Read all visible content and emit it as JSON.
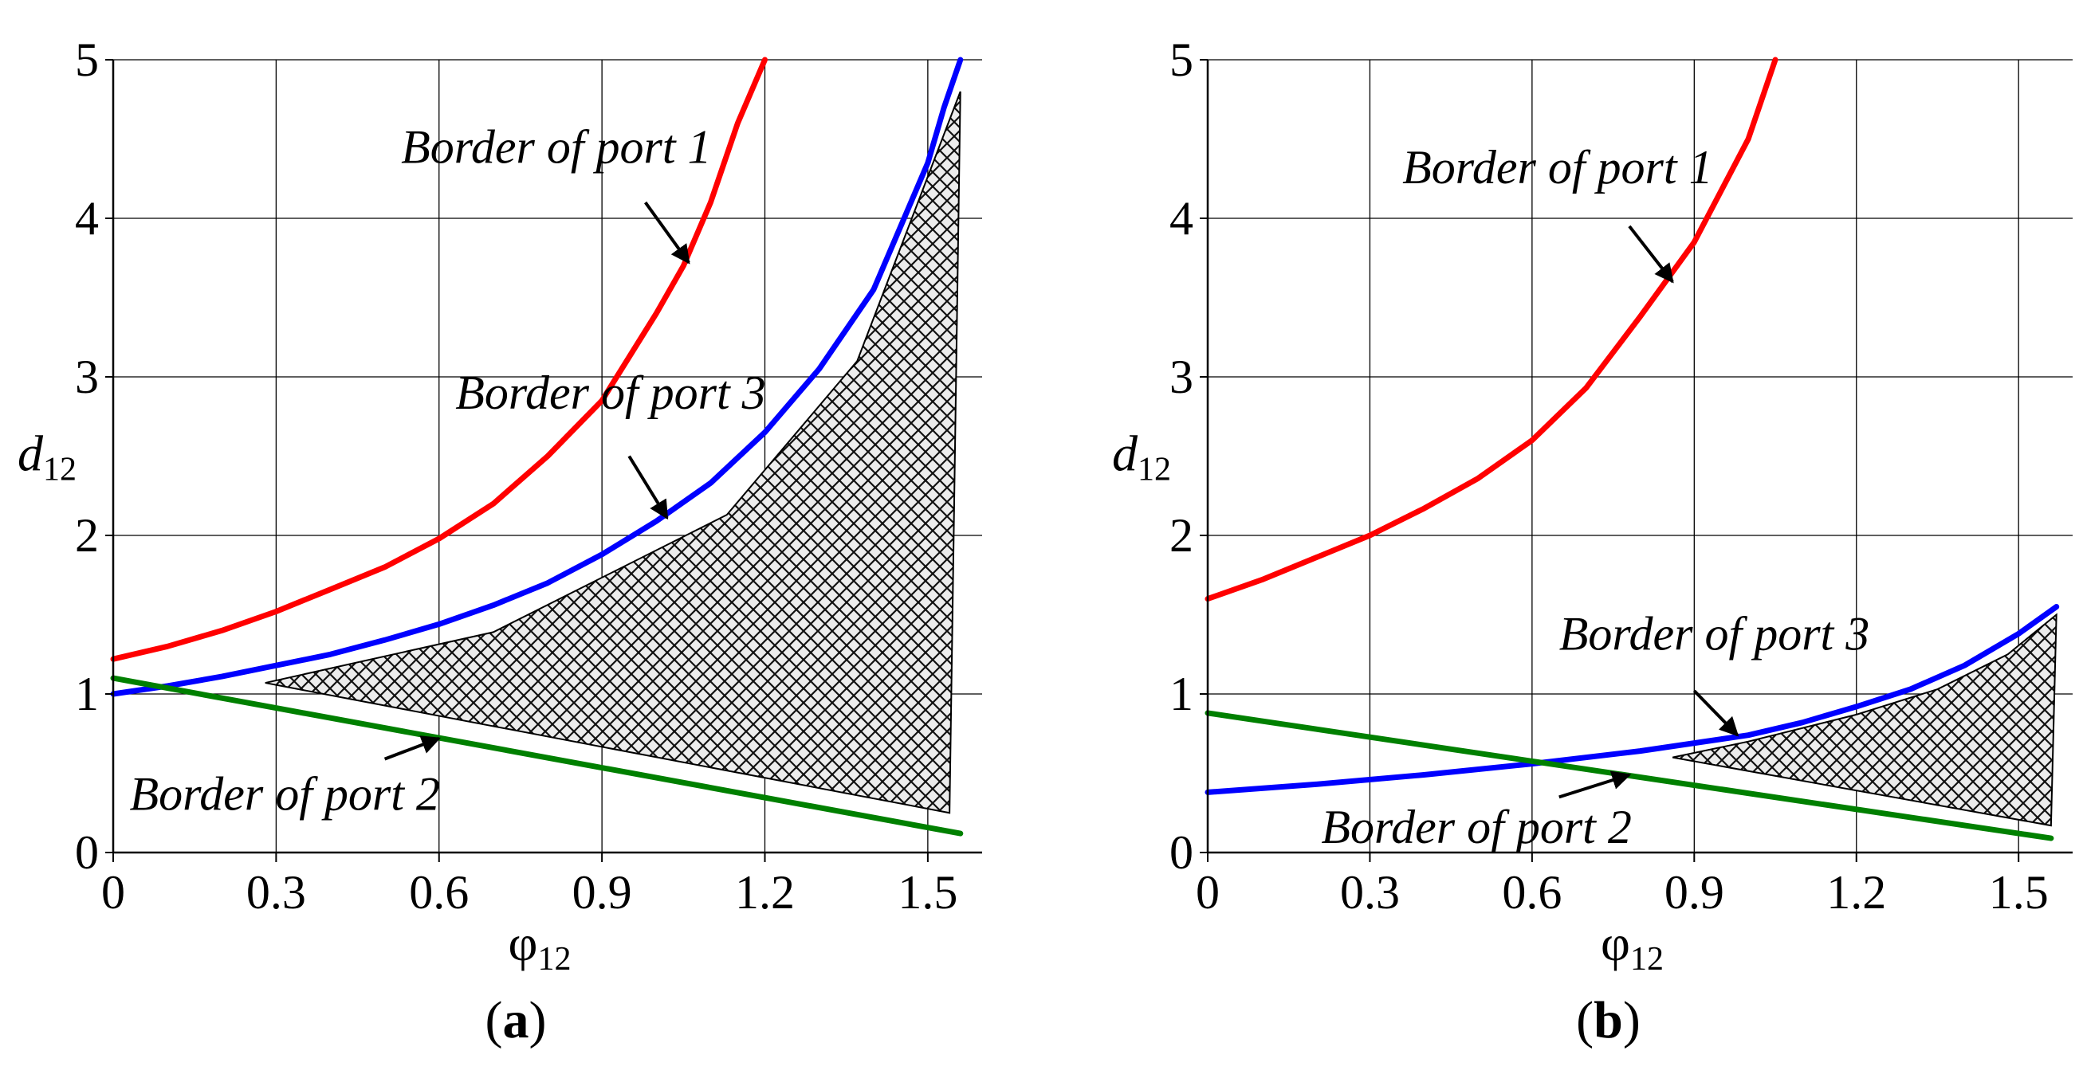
{
  "chart_data": [
    {
      "type": "line",
      "panel_label": "a",
      "xlabel": "φ",
      "xlabel_sub": "12",
      "ylabel": "d",
      "ylabel_sub": "12",
      "xlim": [
        0,
        1.6
      ],
      "ylim": [
        0,
        5
      ],
      "xticks": [
        "0",
        "0.3",
        "0.6",
        "0.9",
        "1.2",
        "1.5"
      ],
      "xtick_values": [
        0,
        0.3,
        0.6,
        0.9,
        1.2,
        1.5
      ],
      "yticks": [
        "0",
        "1",
        "2",
        "3",
        "4",
        "5"
      ],
      "ytick_values": [
        0,
        1,
        2,
        3,
        4,
        5
      ],
      "grid": true,
      "series": [
        {
          "name": "Border of port 1",
          "color": "#ff0000",
          "x": [
            0,
            0.1,
            0.2,
            0.3,
            0.4,
            0.5,
            0.6,
            0.7,
            0.8,
            0.9,
            1.0,
            1.05,
            1.1,
            1.15,
            1.2
          ],
          "y": [
            1.22,
            1.3,
            1.4,
            1.52,
            1.66,
            1.8,
            1.98,
            2.2,
            2.5,
            2.85,
            3.4,
            3.7,
            4.1,
            4.6,
            5.0
          ]
        },
        {
          "name": "Border of port 3",
          "color": "#0000ff",
          "x": [
            0,
            0.1,
            0.2,
            0.3,
            0.4,
            0.5,
            0.6,
            0.7,
            0.8,
            0.9,
            1.0,
            1.1,
            1.2,
            1.3,
            1.4,
            1.5,
            1.53,
            1.56
          ],
          "y": [
            1.0,
            1.05,
            1.11,
            1.18,
            1.25,
            1.34,
            1.44,
            1.56,
            1.7,
            1.88,
            2.09,
            2.33,
            2.65,
            3.05,
            3.55,
            4.35,
            4.7,
            5.0
          ]
        },
        {
          "name": "Border of port 2",
          "color": "#008000",
          "x": [
            0,
            1.56
          ],
          "y": [
            1.1,
            0.12
          ]
        }
      ],
      "region": {
        "x": [
          0.28,
          0.7,
          1.13,
          1.37,
          1.56,
          1.54,
          0.28
        ],
        "y": [
          1.07,
          1.39,
          2.13,
          3.1,
          4.8,
          0.25,
          1.07
        ]
      },
      "annotations": [
        {
          "text": "Border of port 1",
          "text_x": 0.53,
          "text_y": 4.35,
          "arrow_from": [
            0.98,
            4.1
          ],
          "arrow_to": [
            1.06,
            3.72
          ]
        },
        {
          "text": "Border of port 3",
          "text_x": 0.63,
          "text_y": 2.8,
          "arrow_from": [
            0.95,
            2.5
          ],
          "arrow_to": [
            1.02,
            2.11
          ]
        },
        {
          "text": "Border of port 2",
          "text_x": 0.03,
          "text_y": 0.27,
          "arrow_from": [
            0.5,
            0.59
          ],
          "arrow_to": [
            0.6,
            0.72
          ]
        }
      ]
    },
    {
      "type": "line",
      "panel_label": "b",
      "xlabel": "φ",
      "xlabel_sub": "12",
      "ylabel": "d",
      "ylabel_sub": "12",
      "xlim": [
        0,
        1.6
      ],
      "ylim": [
        0,
        5
      ],
      "xticks": [
        "0",
        "0.3",
        "0.6",
        "0.9",
        "1.2",
        "1.5"
      ],
      "xtick_values": [
        0,
        0.3,
        0.6,
        0.9,
        1.2,
        1.5
      ],
      "yticks": [
        "0",
        "1",
        "2",
        "3",
        "4",
        "5"
      ],
      "ytick_values": [
        0,
        1,
        2,
        3,
        4,
        5
      ],
      "grid": true,
      "series": [
        {
          "name": "Border of port 1",
          "color": "#ff0000",
          "x": [
            0,
            0.1,
            0.2,
            0.3,
            0.4,
            0.5,
            0.6,
            0.7,
            0.8,
            0.9,
            1.0,
            1.05
          ],
          "y": [
            1.6,
            1.72,
            1.86,
            2.0,
            2.17,
            2.36,
            2.6,
            2.93,
            3.38,
            3.85,
            4.5,
            5.0
          ]
        },
        {
          "name": "Border of port 3",
          "color": "#0000ff",
          "x": [
            0,
            0.2,
            0.4,
            0.6,
            0.8,
            1.0,
            1.1,
            1.2,
            1.3,
            1.4,
            1.5,
            1.57
          ],
          "y": [
            0.38,
            0.43,
            0.49,
            0.56,
            0.64,
            0.74,
            0.82,
            0.92,
            1.03,
            1.18,
            1.38,
            1.55
          ]
        },
        {
          "name": "Border of port 2",
          "color": "#008000",
          "x": [
            0,
            1.56
          ],
          "y": [
            0.88,
            0.09
          ]
        }
      ],
      "region": {
        "x": [
          0.86,
          1.0,
          1.2,
          1.35,
          1.48,
          1.57,
          1.56,
          0.86
        ],
        "y": [
          0.6,
          0.7,
          0.87,
          1.03,
          1.25,
          1.5,
          0.17,
          0.6
        ]
      },
      "annotations": [
        {
          "text": "Border of port 1",
          "text_x": 0.36,
          "text_y": 4.22,
          "arrow_from": [
            0.78,
            3.95
          ],
          "arrow_to": [
            0.86,
            3.6
          ]
        },
        {
          "text": "Border of port 3",
          "text_x": 0.65,
          "text_y": 1.28,
          "arrow_from": [
            0.9,
            1.02
          ],
          "arrow_to": [
            0.98,
            0.74
          ]
        },
        {
          "text": "Border of port 2",
          "text_x": 0.21,
          "text_y": 0.06,
          "arrow_from": [
            0.65,
            0.35
          ],
          "arrow_to": [
            0.78,
            0.49
          ]
        }
      ]
    }
  ]
}
